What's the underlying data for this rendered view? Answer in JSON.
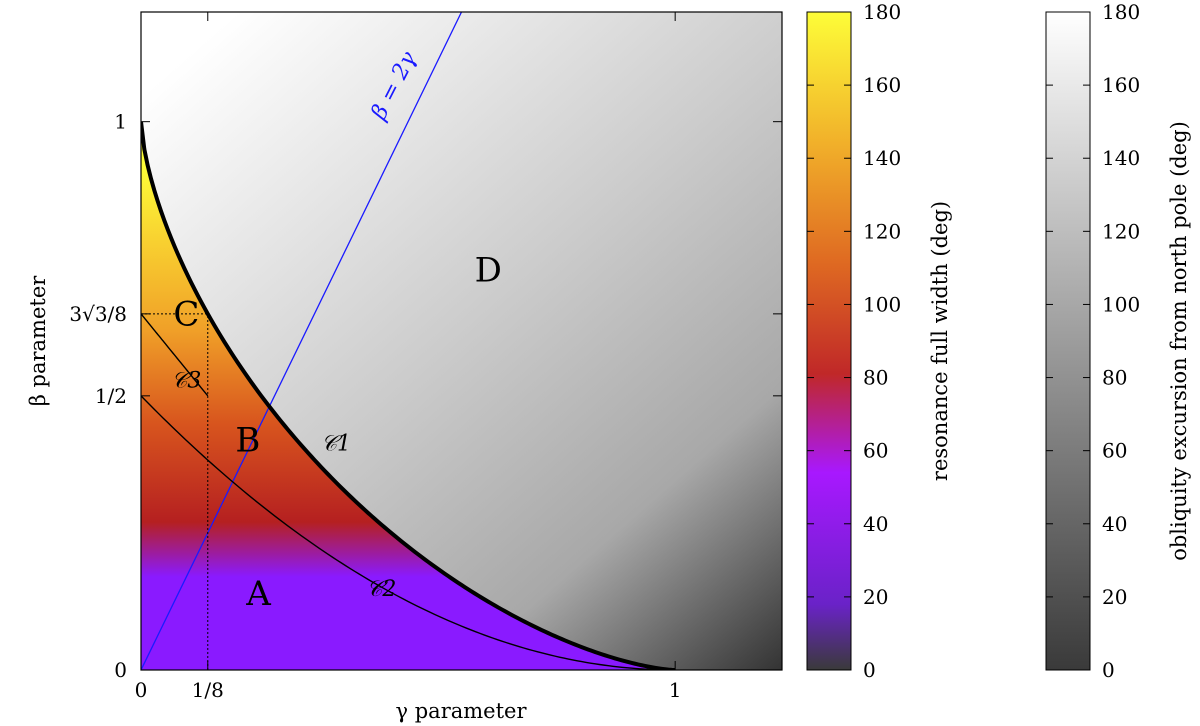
{
  "chart_data": {
    "type": "heatmap",
    "xlabel": "γ parameter",
    "ylabel": "β parameter",
    "xlim": [
      0,
      1.2
    ],
    "ylim": [
      0,
      1.2
    ],
    "x_ticks": [
      {
        "value": 0,
        "label": "0"
      },
      {
        "value": 0.125,
        "label": "1/8"
      },
      {
        "value": 1,
        "label": "1"
      }
    ],
    "y_ticks": [
      {
        "value": 0,
        "label": "0"
      },
      {
        "value": 0.5,
        "label": "1/2"
      },
      {
        "value": 0.6495,
        "label": "3√3/8"
      },
      {
        "value": 1,
        "label": "1"
      }
    ],
    "line_label": "β = 2γ",
    "line_color": "#1a1aff",
    "regions": [
      {
        "label": "A",
        "x": 0.22,
        "y": 0.14
      },
      {
        "label": "B",
        "x": 0.2,
        "y": 0.42
      },
      {
        "label": "C",
        "x": 0.085,
        "y": 0.65
      },
      {
        "label": "D",
        "x": 0.65,
        "y": 0.73
      }
    ],
    "curves": [
      {
        "label": "𝒞1",
        "x": 0.365,
        "y": 0.415
      },
      {
        "label": "𝒞2",
        "x": 0.45,
        "y": 0.15
      },
      {
        "label": "𝒞3",
        "x": 0.085,
        "y": 0.53
      }
    ],
    "colorbars": [
      {
        "label": "resonance full width (deg)",
        "range": [
          0,
          180
        ],
        "ticks": [
          0,
          20,
          40,
          60,
          80,
          100,
          120,
          140,
          160,
          180
        ],
        "colors": [
          "#3a3a3a",
          "#8a1aff",
          "#b02a2a",
          "#e07020",
          "#f0b428",
          "#fdfd38"
        ]
      },
      {
        "label": "obliquity excursion from north pole (deg)",
        "range": [
          0,
          180
        ],
        "ticks": [
          0,
          20,
          40,
          60,
          80,
          100,
          120,
          140,
          160,
          180
        ],
        "colors": [
          "#3a3a3a",
          "#ffffff"
        ]
      }
    ]
  }
}
